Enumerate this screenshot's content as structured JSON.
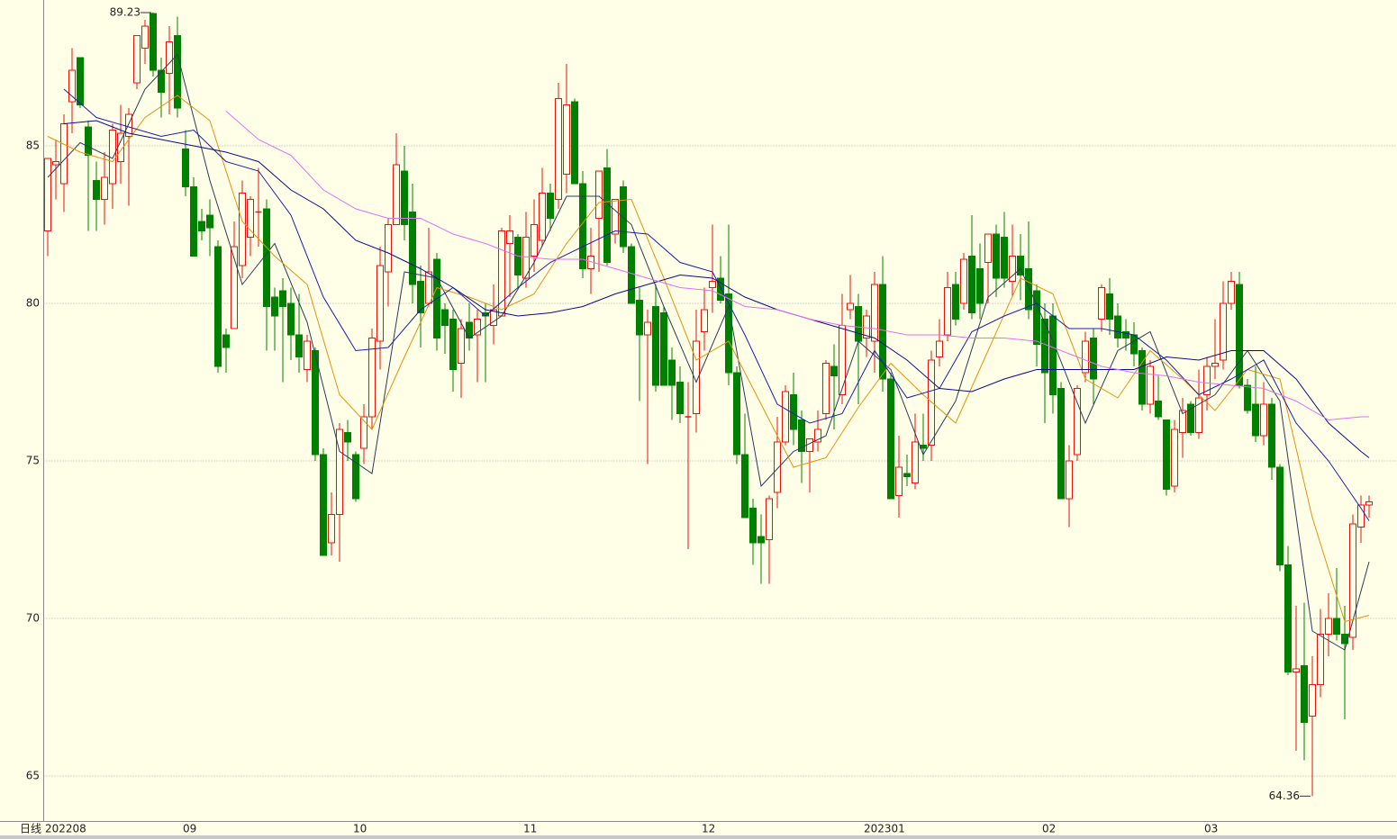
{
  "chart_data": {
    "type": "candlestick",
    "period_label": "日线",
    "categories": [
      "202208",
      null,
      null,
      null,
      null,
      null,
      null,
      null,
      null,
      null,
      null,
      null,
      null,
      null,
      null,
      null,
      null,
      "09",
      null,
      null,
      null,
      null,
      null,
      null,
      null,
      null,
      null,
      null,
      null,
      null,
      null,
      null,
      null,
      null,
      null,
      null,
      null,
      null,
      "10",
      null,
      null,
      null,
      null,
      null,
      null,
      null,
      null,
      null,
      null,
      null,
      null,
      null,
      null,
      null,
      null,
      null,
      null,
      null,
      null,
      "11",
      null,
      null,
      null,
      null,
      null,
      null,
      null,
      null,
      null,
      null,
      null,
      null,
      null,
      null,
      null,
      null,
      null,
      null,
      null,
      null,
      null,
      "12",
      null,
      null,
      null,
      null,
      null,
      null,
      null,
      null,
      null,
      null,
      null,
      null,
      null,
      null,
      null,
      null,
      null,
      null,
      null,
      "202301",
      null,
      null,
      null,
      null,
      null,
      null,
      null,
      null,
      null,
      null,
      null,
      null,
      null,
      null,
      null,
      null,
      null,
      null,
      null,
      null,
      null,
      "02",
      null,
      null,
      null,
      null,
      null,
      null,
      null,
      null,
      null,
      null,
      null,
      null,
      null,
      null,
      null,
      null,
      null,
      null,
      null,
      "03",
      null,
      null,
      null,
      null,
      null,
      null,
      null,
      null,
      null,
      null,
      null,
      null,
      null,
      null,
      null,
      null,
      null,
      null,
      null,
      null
    ],
    "open": [
      82.3,
      84.4,
      83.8,
      86.4,
      87.8,
      85.6,
      83.9,
      83.3,
      83.8,
      84.5,
      85.3,
      87,
      88.1,
      89.2,
      87.4,
      87.3,
      88.5,
      84.9,
      83.7,
      82.6,
      82.8,
      81.8,
      79,
      79.2,
      81.2,
      82.1,
      82.9,
      83,
      80.2,
      80.4,
      80,
      79,
      77.9,
      78.5,
      75.2,
      72.4,
      73.3,
      75.9,
      75.2,
      75.4,
      76.4,
      78.8,
      81,
      82.5,
      84.2,
      82.9,
      80.7,
      80,
      81.4,
      79.8,
      79.5,
      78.1,
      79.4,
      79,
      79.7,
      79.3,
      79.6,
      81.9,
      82.1,
      80.8,
      81.5,
      82,
      83.5,
      83.3,
      84.1,
      86.4,
      83.8,
      81.1,
      82.7,
      84.3,
      82.2,
      83.7,
      81.8,
      80.1,
      79,
      79.9,
      79.7,
      78.2,
      77.5,
      76.4,
      76.5,
      79.1,
      80.5,
      80.8,
      80.3,
      77.8,
      75.2,
      73.5,
      72.6,
      72.5,
      74,
      75.6,
      77.1,
      76.3,
      75.3,
      75.6,
      76.5,
      78,
      77.1,
      79.8,
      79.9,
      78.9,
      78.8,
      80.6,
      77.6,
      73.9,
      74.6,
      74.3,
      75.5,
      75.5,
      78.3,
      79,
      80.6,
      80,
      81.5,
      81.1,
      81.3,
      82.2,
      82.1,
      80.7,
      81.5,
      81.1,
      80.4,
      79.5,
      79.6,
      77.3,
      73.8,
      75.2,
      77.8,
      78.9,
      79.5,
      80.3,
      79.6,
      79.1,
      79,
      78.5,
      76.8,
      76.9,
      76.3,
      74.2,
      75.9,
      76.8,
      75.9,
      77.1,
      78,
      78.2,
      80,
      80.6,
      77.4,
      76.8,
      75.8,
      76.8,
      74.8,
      71.7,
      68.3,
      68.5,
      66.9,
      67.9,
      69.5,
      70,
      69.5,
      69.4,
      72.9,
      73.6
    ],
    "high": [
      84.6,
      85.2,
      86,
      88.1,
      87.8,
      85.8,
      84.5,
      84.8,
      85.7,
      86.3,
      86.2,
      88.5,
      89,
      89.23,
      87.8,
      88.8,
      89.1,
      85.5,
      84,
      83,
      83.3,
      82,
      79.2,
      82.6,
      83.9,
      83.4,
      84.3,
      83.3,
      80.5,
      80.8,
      80.5,
      80.3,
      79,
      78.6,
      75.4,
      74,
      76.2,
      76.3,
      75.3,
      76.8,
      79.2,
      81.8,
      82.7,
      85.4,
      85,
      83.8,
      81.2,
      82.4,
      81.6,
      80,
      79.8,
      79.5,
      80,
      79.8,
      80,
      80.6,
      82.4,
      82.8,
      82.2,
      82.9,
      83.3,
      84.3,
      83.8,
      87,
      87.6,
      86.5,
      84.2,
      82.4,
      84.2,
      84.9,
      83.3,
      83.9,
      81.9,
      80.5,
      79.8,
      80.6,
      79.9,
      78.6,
      78,
      77.5,
      79.8,
      80.5,
      82.5,
      81.5,
      82.5,
      78,
      76.5,
      73.8,
      73.3,
      73.9,
      76.4,
      77.4,
      77.8,
      76.6,
      75.7,
      76.6,
      78.2,
      78.7,
      80.3,
      80.9,
      80.3,
      79.8,
      81,
      81.5,
      77.8,
      75.8,
      75.2,
      76.5,
      76.5,
      78.5,
      79.5,
      81,
      81,
      81.6,
      82.8,
      81.9,
      82.2,
      82.5,
      82.9,
      82.5,
      82.2,
      82.6,
      80.6,
      80,
      80,
      77.5,
      75.5,
      77.4,
      79.1,
      79.2,
      80.6,
      80.8,
      80,
      79.5,
      79.4,
      78.6,
      78.2,
      77.7,
      76.3,
      76.3,
      77,
      76.9,
      77.9,
      78.3,
      79.5,
      80.7,
      81,
      81,
      77.6,
      78,
      77.5,
      77,
      74.9,
      72.3,
      70.4,
      70.5,
      68.8,
      70.3,
      70.8,
      71.6,
      70.4,
      73.3,
      73.9,
      73.9
    ],
    "low": [
      81.5,
      83.3,
      82.9,
      85.4,
      86.2,
      82.3,
      82.3,
      82.5,
      83,
      83.8,
      83.1,
      86.8,
      87.6,
      87.2,
      85.9,
      86,
      85.9,
      83.4,
      81.5,
      82,
      81.5,
      77.8,
      77.8,
      79.2,
      80.8,
      81.5,
      81.8,
      78.5,
      78.5,
      77.5,
      78.2,
      77.8,
      77.5,
      75,
      72,
      72,
      71.8,
      75,
      73.7,
      74.9,
      76,
      77.9,
      79.9,
      82.5,
      82,
      80,
      78.6,
      79.9,
      78.5,
      78.4,
      77.2,
      77,
      78.5,
      77.5,
      77.5,
      78.7,
      79.6,
      80.2,
      80.5,
      80.5,
      81,
      81.8,
      82.3,
      83,
      83.5,
      83.8,
      80.8,
      80.3,
      81,
      81.2,
      81.9,
      81.6,
      80,
      76.9,
      74.9,
      77.2,
      77.4,
      76.3,
      76.2,
      72.2,
      75.9,
      78.5,
      79.7,
      80,
      77.4,
      74.9,
      73.2,
      71.7,
      71.1,
      71.1,
      73.5,
      75.5,
      75.5,
      74.3,
      74,
      75.3,
      76.3,
      76,
      76.8,
      79.5,
      76.8,
      78.3,
      77.8,
      77.2,
      73.8,
      73.2,
      74.2,
      74.1,
      75,
      75,
      78,
      78.8,
      79.3,
      79.8,
      79.5,
      79.5,
      80,
      80.2,
      80.5,
      80.2,
      80.1,
      79.5,
      78,
      76.2,
      76.5,
      73.8,
      72.9,
      75,
      77.5,
      76.8,
      79.1,
      79,
      78.6,
      78.5,
      78,
      76.6,
      76.5,
      76.3,
      73.9,
      74,
      75.1,
      75.8,
      75.7,
      76.6,
      77.6,
      77.9,
      79.8,
      77.3,
      76.5,
      75.6,
      75.5,
      74.4,
      71.5,
      68.2,
      65.8,
      65.5,
      64.36,
      67.5,
      68.8,
      69.3,
      66.8,
      69,
      72.4,
      73.2
    ],
    "close": [
      84.6,
      84.5,
      85.7,
      87.4,
      86.3,
      84.7,
      83.3,
      84,
      85.5,
      85.4,
      86,
      88.5,
      88.8,
      87.4,
      86.7,
      88.3,
      86.2,
      83.7,
      81.5,
      82.3,
      82.4,
      78,
      78.6,
      81.8,
      83.5,
      83.3,
      82.9,
      79.9,
      79.6,
      79.9,
      79,
      78.3,
      78.8,
      75.2,
      72,
      73.3,
      76,
      75.6,
      73.8,
      76.4,
      78.9,
      81.2,
      82.5,
      84.4,
      82.5,
      80.6,
      79.7,
      81,
      78.9,
      79.3,
      77.9,
      79.2,
      78.9,
      79.5,
      79.6,
      79.8,
      82.3,
      82.3,
      80.9,
      82.1,
      82.5,
      83.5,
      82.7,
      86.5,
      86.3,
      83.8,
      81.1,
      81.5,
      84.2,
      81.3,
      83.3,
      81.8,
      80,
      79,
      79.4,
      77.4,
      77.4,
      77.4,
      76.5,
      76.4,
      78.8,
      79.8,
      80.7,
      80.1,
      77.8,
      75.2,
      73.2,
      72.4,
      72.4,
      73.8,
      75.6,
      77.2,
      76,
      75.3,
      75.7,
      76,
      78.1,
      77.7,
      79.3,
      80,
      78.8,
      79.6,
      80.6,
      77.6,
      73.8,
      74.8,
      74.5,
      75.6,
      75.4,
      78.2,
      78.8,
      80.5,
      79.5,
      81.4,
      79.7,
      80,
      82.2,
      80.8,
      80.8,
      81.5,
      80.9,
      79.8,
      78.7,
      77.8,
      77.1,
      73.8,
      75,
      77.3,
      78.8,
      77.6,
      80.5,
      79.5,
      78.9,
      78.9,
      78.4,
      76.8,
      78,
      76.4,
      74.1,
      76,
      76.6,
      75.9,
      77,
      78,
      78.1,
      80,
      80.7,
      77.4,
      76.6,
      75.8,
      76.8,
      74.8,
      71.7,
      68.3,
      68.4,
      66.7,
      67.9,
      69.5,
      70,
      69.5,
      69.2,
      73,
      73.6,
      73.7
    ],
    "up_color": "#e81010",
    "down_color": "#008000",
    "lines": [
      {
        "color": "#2b3a5c",
        "x": [
          0,
          4,
          8,
          12,
          16,
          20,
          24,
          28,
          32,
          36,
          40,
          44,
          48,
          52,
          56,
          60,
          64,
          68,
          72,
          76,
          80,
          84,
          88,
          92,
          96,
          100,
          104,
          108,
          112,
          116,
          120,
          124,
          128,
          132,
          136,
          140,
          144,
          148,
          152,
          156,
          160,
          163
        ],
        "values": [
          84,
          85.1,
          84.6,
          86.8,
          87.9,
          83.9,
          80.6,
          81.9,
          79.4,
          75.3,
          74.6,
          81,
          80.8,
          78.9,
          79.6,
          81.3,
          83.4,
          83.4,
          82.5,
          79.9,
          77.5,
          79.9,
          74.2,
          75.3,
          75.8,
          78.8,
          77.9,
          75.2,
          76.9,
          80.2,
          81.1,
          78.8,
          76.2,
          78.5,
          79.1,
          76.5,
          77.1,
          78.5,
          76.9,
          69.6,
          69,
          71.8
        ]
      },
      {
        "color": "#e8900c",
        "x": [
          0,
          4,
          8,
          12,
          16,
          20,
          24,
          28,
          32,
          36,
          40,
          44,
          48,
          52,
          56,
          60,
          64,
          68,
          72,
          76,
          80,
          84,
          88,
          92,
          96,
          100,
          104,
          108,
          112,
          116,
          120,
          124,
          128,
          132,
          136,
          140,
          144,
          148,
          152,
          156,
          160,
          163
        ],
        "values": [
          85.3,
          84.8,
          84.5,
          85.9,
          86.6,
          85.8,
          82.6,
          81.5,
          80.6,
          77.1,
          76,
          78.3,
          80.5,
          80.2,
          79.8,
          80.3,
          81.9,
          83.2,
          83.3,
          80.8,
          78.2,
          78.8,
          76.8,
          74.8,
          75.1,
          76.7,
          78.1,
          77.1,
          76.2,
          78.5,
          80.8,
          80.3,
          77.6,
          77,
          78.5,
          77.6,
          76.6,
          77.9,
          77.6,
          73.2,
          69.9,
          70.1
        ]
      },
      {
        "color": "#1c1cb0",
        "x": [
          2,
          6,
          10,
          14,
          18,
          22,
          26,
          30,
          34,
          38,
          42,
          46,
          50,
          54,
          58,
          62,
          66,
          70,
          74,
          78,
          82,
          86,
          90,
          94,
          98,
          102,
          106,
          110,
          114,
          118,
          122,
          126,
          130,
          134,
          138,
          142,
          146,
          150,
          154,
          158,
          162,
          163
        ],
        "values": [
          86.8,
          85.9,
          85.6,
          85.3,
          85.5,
          84.5,
          84.2,
          82.8,
          80.2,
          78.5,
          78.6,
          79.8,
          80.5,
          79.6,
          80.5,
          81.3,
          81.8,
          82.3,
          82.2,
          81.3,
          81,
          79,
          76.8,
          76.2,
          76.5,
          78.5,
          77,
          77.3,
          79.1,
          79.6,
          80,
          79.2,
          79.2,
          79,
          78.2,
          77.1,
          77.6,
          78.2,
          76.2,
          75,
          73.5,
          73.1
        ]
      },
      {
        "color": "#0a0a8c",
        "x": [
          2,
          6,
          10,
          14,
          18,
          22,
          26,
          30,
          34,
          38,
          42,
          46,
          50,
          54,
          58,
          62,
          66,
          70,
          74,
          78,
          82,
          86,
          90,
          94,
          98,
          102,
          106,
          110,
          114,
          118,
          122,
          126,
          130,
          134,
          138,
          142,
          146,
          150,
          154,
          158,
          162,
          163
        ],
        "values": [
          85.7,
          85.8,
          85.4,
          85.2,
          85,
          84.8,
          84.5,
          83.6,
          83,
          82,
          81.6,
          81.1,
          80.5,
          79.8,
          79.6,
          79.7,
          79.9,
          80.3,
          80.6,
          80.9,
          80.8,
          80.2,
          79.8,
          79.5,
          79.2,
          78.9,
          78.2,
          77.3,
          77.2,
          77.6,
          77.9,
          77.9,
          77.9,
          77.9,
          78.3,
          78.2,
          78.5,
          78.5,
          77.6,
          76.2,
          75.3,
          75.1
        ]
      },
      {
        "color": "#e070ee",
        "x": [
          22,
          26,
          30,
          34,
          38,
          42,
          46,
          50,
          54,
          58,
          62,
          66,
          70,
          74,
          78,
          82,
          86,
          90,
          94,
          98,
          102,
          106,
          110,
          114,
          118,
          122,
          126,
          130,
          134,
          138,
          142,
          146,
          150,
          154,
          158,
          162,
          163
        ],
        "values": [
          86.1,
          85.2,
          84.7,
          83.6,
          83,
          82.7,
          82.7,
          82.2,
          81.9,
          81.5,
          81.4,
          81.4,
          81.1,
          80.8,
          80.5,
          80.4,
          79.9,
          79.8,
          79.5,
          79.3,
          79.2,
          79,
          79,
          78.9,
          78.9,
          78.8,
          78.4,
          78,
          77.8,
          77.7,
          77.5,
          77.4,
          77.3,
          76.9,
          76.3,
          76.4,
          76.4
        ]
      }
    ],
    "high_label": 89.23,
    "low_label": 64.36,
    "ylim": [
      63.57,
      89.63
    ],
    "yticks": [
      65,
      70,
      75,
      80,
      85
    ],
    "grid": true
  }
}
